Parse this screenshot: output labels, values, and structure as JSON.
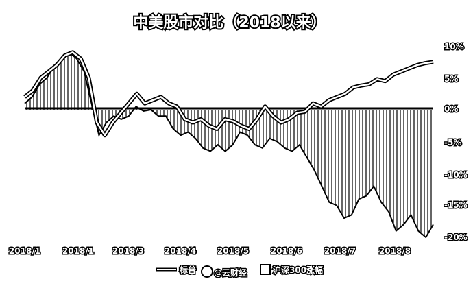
{
  "chart_data": {
    "type": "area",
    "title": "中美股市对比（2018以来）",
    "xlabel": "",
    "ylabel": "",
    "x_ticks": [
      "2018/1",
      "2018/1",
      "2018/3",
      "2018/4",
      "2018/5",
      "2018/6",
      "2018/7",
      "2018/8"
    ],
    "y_ticks": [
      "10%",
      "5%",
      "0%",
      "-5%",
      "-10%",
      "-15%",
      "-20%"
    ],
    "ylim": [
      -20,
      10
    ],
    "grid": false,
    "legend_position": "bottom",
    "legend": [
      "标普",
      "沪深300涨幅"
    ],
    "watermark": "@云财经",
    "series": [
      {
        "name": "标普",
        "style": "line",
        "values": [
          2,
          3,
          5,
          6,
          7,
          8.5,
          9,
          8,
          5,
          -2,
          -4,
          -2,
          -0.5,
          1,
          2.5,
          1,
          1.5,
          2,
          1,
          0.5,
          -1.5,
          -2,
          -1.5,
          -2.5,
          -3,
          -1.5,
          -1.8,
          -2.5,
          -3,
          -1.5,
          0.5,
          -1,
          -2,
          -1.5,
          -0.5,
          -0.3,
          1,
          0.5,
          1.5,
          2,
          2.5,
          3.5,
          3.8,
          4,
          4.8,
          4.5,
          5.5,
          6,
          6.5,
          7,
          7.3,
          7.5
        ]
      },
      {
        "name": "沪深300涨幅",
        "style": "area",
        "values": [
          1,
          2,
          4,
          5,
          7,
          8,
          9,
          8,
          6,
          1,
          -4,
          -2,
          -1,
          -1.5,
          -1,
          0.5,
          -0.2,
          0,
          -1,
          -1,
          -3,
          -4,
          -3.5,
          -4.5,
          -6,
          -6.5,
          -5.5,
          -6.5,
          -5.5,
          -3.5,
          -4,
          -5.5,
          -6,
          -4.5,
          -5,
          -6,
          -6.5,
          -5.5,
          -7.5,
          -9.5,
          -12,
          -14.5,
          -15,
          -17,
          -16.5,
          -14,
          -13.5,
          -12,
          -14.5,
          -16,
          -19,
          -18,
          -16.5,
          -19,
          -20,
          -18
        ]
      }
    ]
  }
}
